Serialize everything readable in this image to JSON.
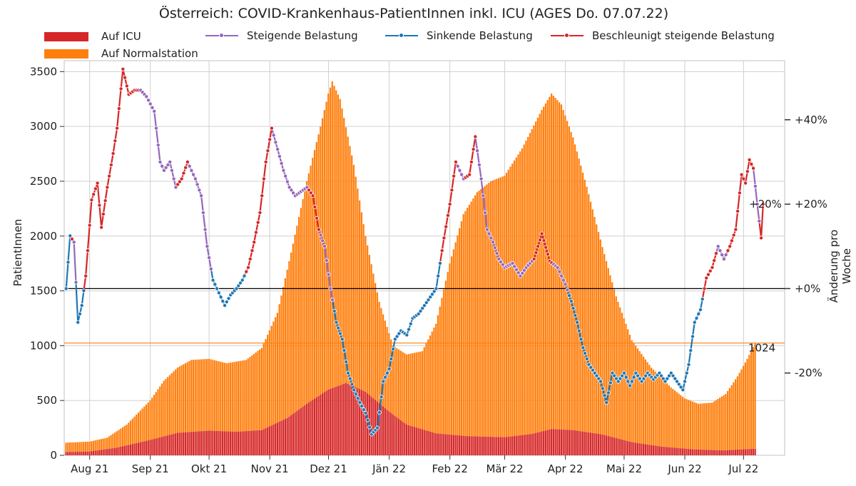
{
  "chart_data": {
    "type": "bar+line",
    "title": "Österreich: COVID-Krankenhaus-PatientInnen inkl. ICU (AGES Do. 07.07.22)",
    "ylabel": "PatientInnen",
    "y2label": "Änderung pro Woche",
    "ylim": [
      0,
      3600
    ],
    "yticks": [
      0,
      500,
      1000,
      1500,
      2000,
      2500,
      3000,
      3500
    ],
    "y2ticks": [
      {
        "label": "+40%",
        "value": 40
      },
      {
        "label": "+20%",
        "value": 20
      },
      {
        "label": "+0%",
        "value": 0
      },
      {
        "label": "-20%",
        "value": -20
      }
    ],
    "y2lim": [
      -39.5,
      54
    ],
    "xlim": [
      "2021-07-19",
      "2022-07-22"
    ],
    "xticks": [
      {
        "label": "Aug 21",
        "date": "2021-08-01"
      },
      {
        "label": "Sep 21",
        "date": "2021-09-01"
      },
      {
        "label": "Okt 21",
        "date": "2021-10-01"
      },
      {
        "label": "Nov 21",
        "date": "2021-11-01"
      },
      {
        "label": "Dez 21",
        "date": "2021-12-01"
      },
      {
        "label": "Jän 22",
        "date": "2022-01-01"
      },
      {
        "label": "Feb 22",
        "date": "2022-02-01"
      },
      {
        "label": "Mär 22",
        "date": "2022-03-01"
      },
      {
        "label": "Apr 22",
        "date": "2022-04-01"
      },
      {
        "label": "Mai 22",
        "date": "2022-05-01"
      },
      {
        "label": "Jun 22",
        "date": "2022-06-01"
      },
      {
        "label": "Jul 22",
        "date": "2022-07-01"
      }
    ],
    "grid": true,
    "legend": [
      {
        "name": "Auf ICU",
        "kind": "bar",
        "color": "#d62728"
      },
      {
        "name": "Auf Normalstation",
        "kind": "bar",
        "color": "#ff7f0e"
      },
      {
        "name": "Steigende Belastung",
        "kind": "line",
        "color": "#9467bd"
      },
      {
        "name": "Sinkende Belastung",
        "kind": "line",
        "color": "#1f77b4"
      },
      {
        "name": "Beschleunigt steigende Belastung",
        "kind": "line",
        "color": "#d62728"
      }
    ],
    "bars_start": "2021-07-20",
    "bars_end": "2022-07-07",
    "total_patients_keypoints": [
      [
        "2021-07-20",
        115
      ],
      [
        "2021-08-01",
        125
      ],
      [
        "2021-08-10",
        160
      ],
      [
        "2021-08-20",
        280
      ],
      [
        "2021-09-01",
        500
      ],
      [
        "2021-09-08",
        680
      ],
      [
        "2021-09-15",
        800
      ],
      [
        "2021-09-22",
        870
      ],
      [
        "2021-10-01",
        880
      ],
      [
        "2021-10-10",
        840
      ],
      [
        "2021-10-20",
        870
      ],
      [
        "2021-10-28",
        980
      ],
      [
        "2021-11-05",
        1300
      ],
      [
        "2021-11-12",
        1850
      ],
      [
        "2021-11-20",
        2500
      ],
      [
        "2021-11-27",
        3000
      ],
      [
        "2021-12-01",
        3300
      ],
      [
        "2021-12-03",
        3410
      ],
      [
        "2021-12-07",
        3250
      ],
      [
        "2021-12-14",
        2650
      ],
      [
        "2021-12-20",
        2000
      ],
      [
        "2021-12-27",
        1400
      ],
      [
        "2022-01-03",
        1000
      ],
      [
        "2022-01-10",
        920
      ],
      [
        "2022-01-18",
        950
      ],
      [
        "2022-01-25",
        1200
      ],
      [
        "2022-02-01",
        1750
      ],
      [
        "2022-02-08",
        2200
      ],
      [
        "2022-02-15",
        2400
      ],
      [
        "2022-02-22",
        2500
      ],
      [
        "2022-03-01",
        2550
      ],
      [
        "2022-03-10",
        2800
      ],
      [
        "2022-03-20",
        3150
      ],
      [
        "2022-03-25",
        3300
      ],
      [
        "2022-03-30",
        3200
      ],
      [
        "2022-04-05",
        2900
      ],
      [
        "2022-04-12",
        2450
      ],
      [
        "2022-04-20",
        1900
      ],
      [
        "2022-04-27",
        1450
      ],
      [
        "2022-05-05",
        1050
      ],
      [
        "2022-05-15",
        800
      ],
      [
        "2022-05-25",
        620
      ],
      [
        "2022-06-01",
        520
      ],
      [
        "2022-06-08",
        470
      ],
      [
        "2022-06-15",
        480
      ],
      [
        "2022-06-22",
        560
      ],
      [
        "2022-06-28",
        720
      ],
      [
        "2022-07-03",
        880
      ],
      [
        "2022-07-07",
        1024
      ]
    ],
    "icu_patients_keypoints": [
      [
        "2021-07-20",
        30
      ],
      [
        "2021-08-01",
        35
      ],
      [
        "2021-08-15",
        70
      ],
      [
        "2021-09-01",
        140
      ],
      [
        "2021-09-15",
        205
      ],
      [
        "2021-10-01",
        225
      ],
      [
        "2021-10-15",
        215
      ],
      [
        "2021-10-28",
        230
      ],
      [
        "2021-11-10",
        340
      ],
      [
        "2021-11-20",
        470
      ],
      [
        "2021-12-01",
        600
      ],
      [
        "2021-12-10",
        660
      ],
      [
        "2021-12-20",
        580
      ],
      [
        "2022-01-01",
        400
      ],
      [
        "2022-01-10",
        280
      ],
      [
        "2022-01-25",
        200
      ],
      [
        "2022-02-10",
        175
      ],
      [
        "2022-03-01",
        165
      ],
      [
        "2022-03-15",
        195
      ],
      [
        "2022-03-25",
        240
      ],
      [
        "2022-04-05",
        230
      ],
      [
        "2022-04-20",
        190
      ],
      [
        "2022-05-05",
        120
      ],
      [
        "2022-05-20",
        80
      ],
      [
        "2022-06-05",
        55
      ],
      [
        "2022-06-20",
        45
      ],
      [
        "2022-07-07",
        60
      ]
    ],
    "weekly_change_points": [
      [
        "2021-07-20",
        0.0
      ],
      [
        "2021-07-22",
        12.5
      ],
      [
        "2021-07-24",
        11.0
      ],
      [
        "2021-07-26",
        -8.0
      ],
      [
        "2021-07-28",
        -4.0
      ],
      [
        "2021-07-30",
        3.0
      ],
      [
        "2021-08-02",
        21.0
      ],
      [
        "2021-08-05",
        25.0
      ],
      [
        "2021-08-07",
        14.5
      ],
      [
        "2021-08-10",
        24.0
      ],
      [
        "2021-08-13",
        32.0
      ],
      [
        "2021-08-15",
        38.0
      ],
      [
        "2021-08-18",
        52.0
      ],
      [
        "2021-08-21",
        46.0
      ],
      [
        "2021-08-24",
        47.0
      ],
      [
        "2021-08-27",
        47.0
      ],
      [
        "2021-08-30",
        45.5
      ],
      [
        "2021-09-03",
        42.0
      ],
      [
        "2021-09-06",
        30.0
      ],
      [
        "2021-09-08",
        28.0
      ],
      [
        "2021-09-11",
        30.0
      ],
      [
        "2021-09-14",
        24.0
      ],
      [
        "2021-09-17",
        26.0
      ],
      [
        "2021-09-20",
        30.0
      ],
      [
        "2021-09-24",
        26.0
      ],
      [
        "2021-09-27",
        22.0
      ],
      [
        "2021-09-30",
        10.0
      ],
      [
        "2021-10-03",
        2.0
      ],
      [
        "2021-10-06",
        -1.0
      ],
      [
        "2021-10-09",
        -4.0
      ],
      [
        "2021-10-12",
        -1.5
      ],
      [
        "2021-10-15",
        0.0
      ],
      [
        "2021-10-18",
        2.0
      ],
      [
        "2021-10-21",
        5.0
      ],
      [
        "2021-10-24",
        11.0
      ],
      [
        "2021-10-27",
        18.0
      ],
      [
        "2021-10-30",
        30.0
      ],
      [
        "2021-11-02",
        38.0
      ],
      [
        "2021-11-05",
        33.0
      ],
      [
        "2021-11-08",
        28.0
      ],
      [
        "2021-11-11",
        24.0
      ],
      [
        "2021-11-14",
        22.0
      ],
      [
        "2021-11-17",
        23.0
      ],
      [
        "2021-11-20",
        24.0
      ],
      [
        "2021-11-23",
        22.0
      ],
      [
        "2021-11-26",
        14.0
      ],
      [
        "2021-11-29",
        10.0
      ],
      [
        "2021-12-02",
        0.0
      ],
      [
        "2021-12-05",
        -8.0
      ],
      [
        "2021-12-08",
        -12.0
      ],
      [
        "2021-12-11",
        -20.0
      ],
      [
        "2021-12-14",
        -24.0
      ],
      [
        "2021-12-17",
        -27.0
      ],
      [
        "2021-12-20",
        -29.5
      ],
      [
        "2021-12-23",
        -34.5
      ],
      [
        "2021-12-26",
        -33.0
      ],
      [
        "2021-12-29",
        -22.0
      ],
      [
        "2022-01-01",
        -19.0
      ],
      [
        "2022-01-04",
        -12.0
      ],
      [
        "2022-01-07",
        -10.0
      ],
      [
        "2022-01-10",
        -11.0
      ],
      [
        "2022-01-13",
        -7.0
      ],
      [
        "2022-01-16",
        -6.0
      ],
      [
        "2022-01-19",
        -4.0
      ],
      [
        "2022-01-22",
        -2.0
      ],
      [
        "2022-01-25",
        0.0
      ],
      [
        "2022-01-29",
        12.0
      ],
      [
        "2022-02-01",
        20.0
      ],
      [
        "2022-02-04",
        30.0
      ],
      [
        "2022-02-08",
        26.0
      ],
      [
        "2022-02-11",
        27.0
      ],
      [
        "2022-02-14",
        36.0
      ],
      [
        "2022-02-17",
        26.0
      ],
      [
        "2022-02-20",
        14.0
      ],
      [
        "2022-02-23",
        11.0
      ],
      [
        "2022-02-26",
        7.0
      ],
      [
        "2022-03-01",
        5.0
      ],
      [
        "2022-03-05",
        6.0
      ],
      [
        "2022-03-09",
        3.0
      ],
      [
        "2022-03-12",
        5.0
      ],
      [
        "2022-03-16",
        7.0
      ],
      [
        "2022-03-20",
        13.0
      ],
      [
        "2022-03-24",
        6.5
      ],
      [
        "2022-03-28",
        5.0
      ],
      [
        "2022-04-01",
        1.0
      ],
      [
        "2022-04-04",
        -3.0
      ],
      [
        "2022-04-07",
        -8.0
      ],
      [
        "2022-04-10",
        -14.0
      ],
      [
        "2022-04-13",
        -18.0
      ],
      [
        "2022-04-16",
        -20.0
      ],
      [
        "2022-04-19",
        -22.0
      ],
      [
        "2022-04-22",
        -27.0
      ],
      [
        "2022-04-25",
        -20.0
      ],
      [
        "2022-04-28",
        -22.0
      ],
      [
        "2022-05-01",
        -20.0
      ],
      [
        "2022-05-04",
        -23.0
      ],
      [
        "2022-05-07",
        -20.0
      ],
      [
        "2022-05-10",
        -22.0
      ],
      [
        "2022-05-13",
        -20.0
      ],
      [
        "2022-05-16",
        -21.5
      ],
      [
        "2022-05-19",
        -20.0
      ],
      [
        "2022-05-22",
        -22.0
      ],
      [
        "2022-05-25",
        -20.0
      ],
      [
        "2022-05-28",
        -22.0
      ],
      [
        "2022-05-31",
        -24.0
      ],
      [
        "2022-06-03",
        -18.0
      ],
      [
        "2022-06-06",
        -8.0
      ],
      [
        "2022-06-09",
        -5.0
      ],
      [
        "2022-06-12",
        2.5
      ],
      [
        "2022-06-15",
        5.0
      ],
      [
        "2022-06-18",
        10.0
      ],
      [
        "2022-06-21",
        7.0
      ],
      [
        "2022-06-24",
        10.0
      ],
      [
        "2022-06-27",
        14.0
      ],
      [
        "2022-06-30",
        27.0
      ],
      [
        "2022-07-02",
        25.0
      ],
      [
        "2022-07-04",
        30.5
      ],
      [
        "2022-07-06",
        28.5
      ],
      [
        "2022-07-08",
        20.0
      ],
      [
        "2022-07-10",
        12.0
      ],
      [
        "2022-07-11",
        20.0
      ]
    ],
    "weekly_change_state_ranges": [
      [
        "2021-07-20",
        "2021-07-23",
        "blue"
      ],
      [
        "2021-07-23",
        "2021-07-24",
        "red"
      ],
      [
        "2021-07-24",
        "2021-07-26",
        "purple"
      ],
      [
        "2021-07-26",
        "2021-07-30",
        "blue"
      ],
      [
        "2021-07-30",
        "2021-08-13",
        "red"
      ],
      [
        "2021-08-13",
        "2021-08-20",
        "red"
      ],
      [
        "2021-08-20",
        "2021-08-27",
        "red"
      ],
      [
        "2021-08-27",
        "2021-09-15",
        "purple"
      ],
      [
        "2021-09-15",
        "2021-09-21",
        "red"
      ],
      [
        "2021-09-21",
        "2021-10-03",
        "purple"
      ],
      [
        "2021-10-03",
        "2021-10-20",
        "blue"
      ],
      [
        "2021-10-20",
        "2021-11-03",
        "red"
      ],
      [
        "2021-11-03",
        "2021-11-21",
        "purple"
      ],
      [
        "2021-11-21",
        "2021-11-27",
        "red"
      ],
      [
        "2021-11-27",
        "2021-12-04",
        "purple"
      ],
      [
        "2021-12-04",
        "2022-01-28",
        "blue"
      ],
      [
        "2022-01-28",
        "2022-02-05",
        "red"
      ],
      [
        "2022-02-05",
        "2022-02-09",
        "purple"
      ],
      [
        "2022-02-09",
        "2022-02-15",
        "red"
      ],
      [
        "2022-02-15",
        "2022-03-16",
        "purple"
      ],
      [
        "2022-03-16",
        "2022-03-26",
        "red"
      ],
      [
        "2022-03-26",
        "2022-04-03",
        "purple"
      ],
      [
        "2022-04-03",
        "2022-06-11",
        "blue"
      ],
      [
        "2022-06-11",
        "2022-06-18",
        "red"
      ],
      [
        "2022-06-18",
        "2022-06-23",
        "purple"
      ],
      [
        "2022-06-23",
        "2022-07-07",
        "red"
      ],
      [
        "2022-07-07",
        "2022-07-10",
        "purple"
      ],
      [
        "2022-07-10",
        "2022-07-12",
        "red"
      ]
    ],
    "annotations": [
      {
        "text": "1024",
        "axis": "left",
        "value": 1024
      },
      {
        "text": "+20%",
        "axis": "right",
        "value": 20
      }
    ],
    "reference_lines": [
      {
        "axis": "right",
        "value": 0,
        "color": "#000000"
      },
      {
        "axis": "left",
        "value": 1024,
        "color": "#ff7f0e"
      }
    ]
  }
}
